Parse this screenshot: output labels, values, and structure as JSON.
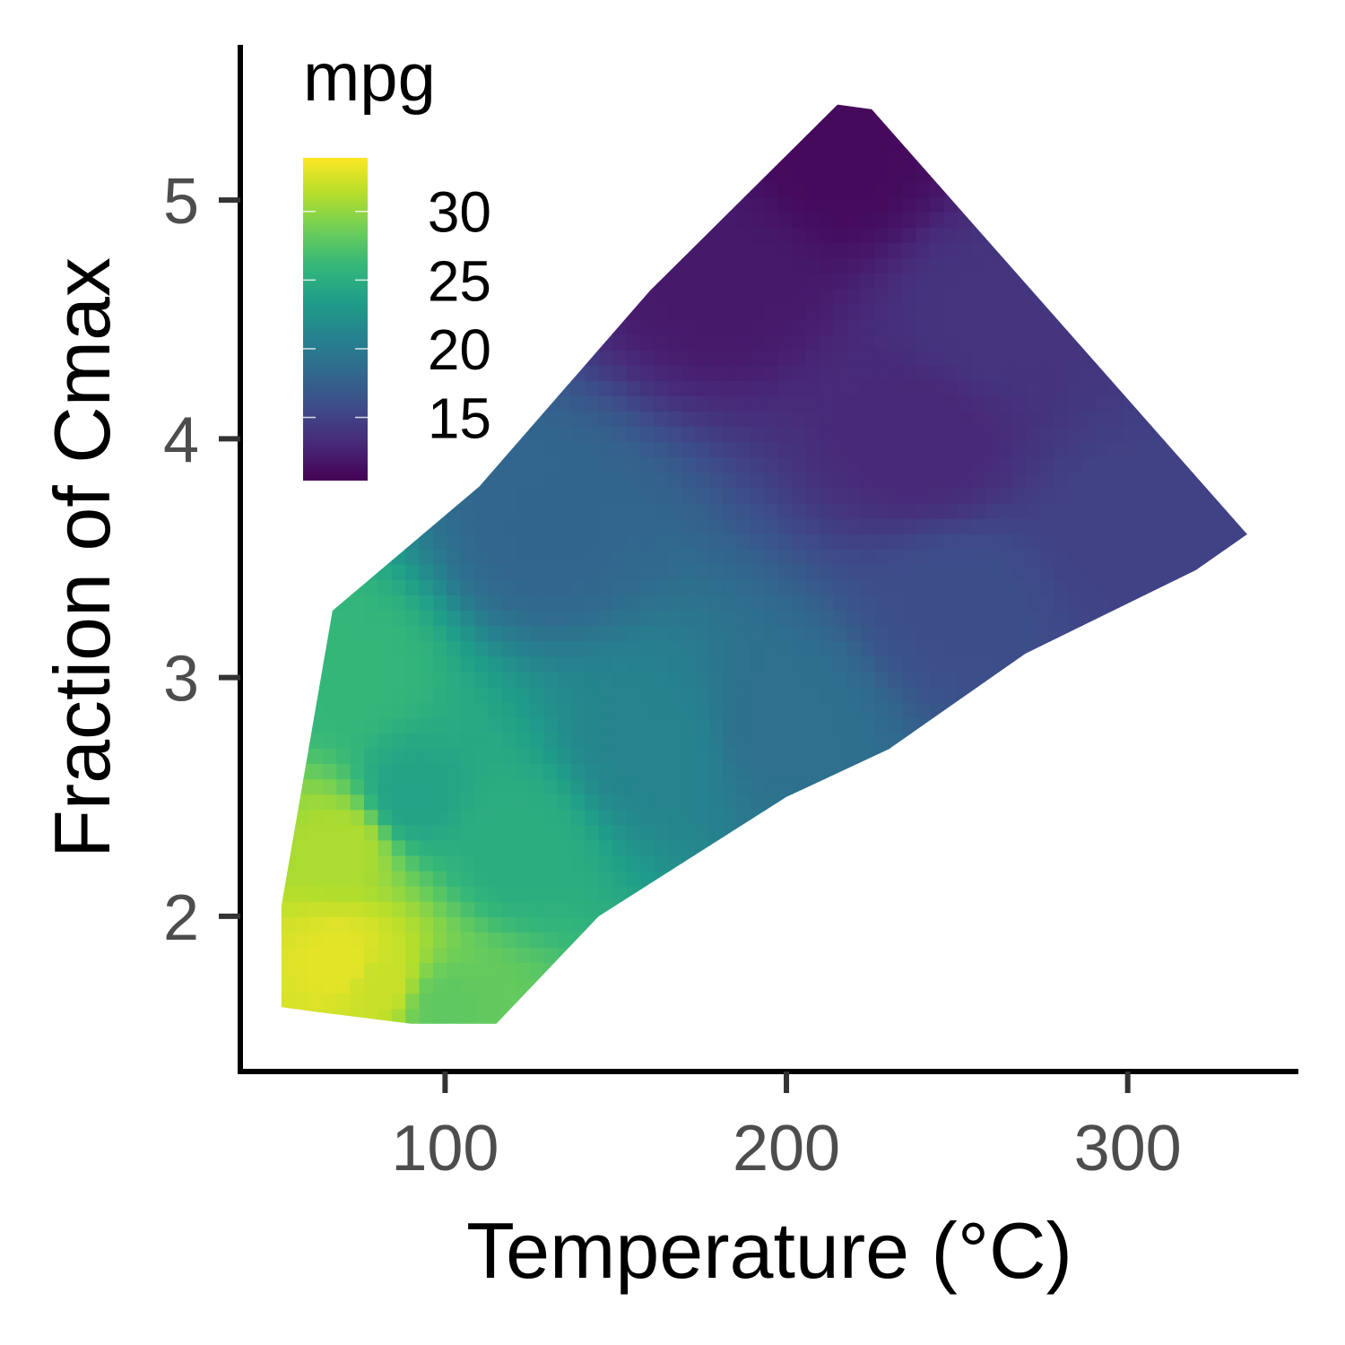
{
  "chart_data": {
    "type": "heatmap",
    "title": "",
    "xlabel": "Temperature (°C)",
    "ylabel": "Fraction of Cmax",
    "xlim": [
      40,
      350
    ],
    "ylim": [
      1.35,
      5.65
    ],
    "x_ticks": [
      100,
      200,
      300
    ],
    "y_ticks": [
      2,
      3,
      4,
      5
    ],
    "grid": false,
    "legend": {
      "title": "mpg",
      "placement": "top-left",
      "range": [
        10.4,
        33.9
      ],
      "ticks": [
        15,
        20,
        25,
        30
      ],
      "colormap": "viridis",
      "colors": [
        "#440154",
        "#482878",
        "#3e4a89",
        "#31688e",
        "#26828e",
        "#1f9e89",
        "#35b779",
        "#6ece58",
        "#b5de2b",
        "#fde725"
      ]
    },
    "region": {
      "outline": [
        [
          52,
          2.04
        ],
        [
          67,
          3.28
        ],
        [
          110,
          3.8
        ],
        [
          160,
          4.62
        ],
        [
          215,
          5.4
        ],
        [
          225,
          5.38
        ],
        [
          335,
          3.6
        ],
        [
          320,
          3.45
        ],
        [
          270,
          3.1
        ],
        [
          230,
          2.7
        ],
        [
          200,
          2.5
        ],
        [
          145,
          2.0
        ],
        [
          115,
          1.55
        ],
        [
          90,
          1.55
        ],
        [
          62,
          1.6
        ],
        [
          52,
          1.62
        ]
      ],
      "value_samples": [
        {
          "x": 70,
          "y": 1.8,
          "mpg": 33
        },
        {
          "x": 70,
          "y": 2.3,
          "mpg": 31
        },
        {
          "x": 80,
          "y": 1.72,
          "mpg": 32
        },
        {
          "x": 100,
          "y": 1.62,
          "mpg": 28
        },
        {
          "x": 70,
          "y": 3.0,
          "mpg": 26
        },
        {
          "x": 90,
          "y": 2.5,
          "mpg": 24
        },
        {
          "x": 120,
          "y": 2.3,
          "mpg": 25
        },
        {
          "x": 160,
          "y": 2.7,
          "mpg": 21
        },
        {
          "x": 200,
          "y": 2.8,
          "mpg": 19
        },
        {
          "x": 130,
          "y": 3.6,
          "mpg": 18
        },
        {
          "x": 250,
          "y": 3.3,
          "mpg": 16
        },
        {
          "x": 300,
          "y": 3.6,
          "mpg": 15
        },
        {
          "x": 240,
          "y": 4.0,
          "mpg": 13
        },
        {
          "x": 215,
          "y": 5.2,
          "mpg": 11
        },
        {
          "x": 180,
          "y": 4.7,
          "mpg": 12
        },
        {
          "x": 260,
          "y": 4.5,
          "mpg": 14
        }
      ]
    }
  }
}
